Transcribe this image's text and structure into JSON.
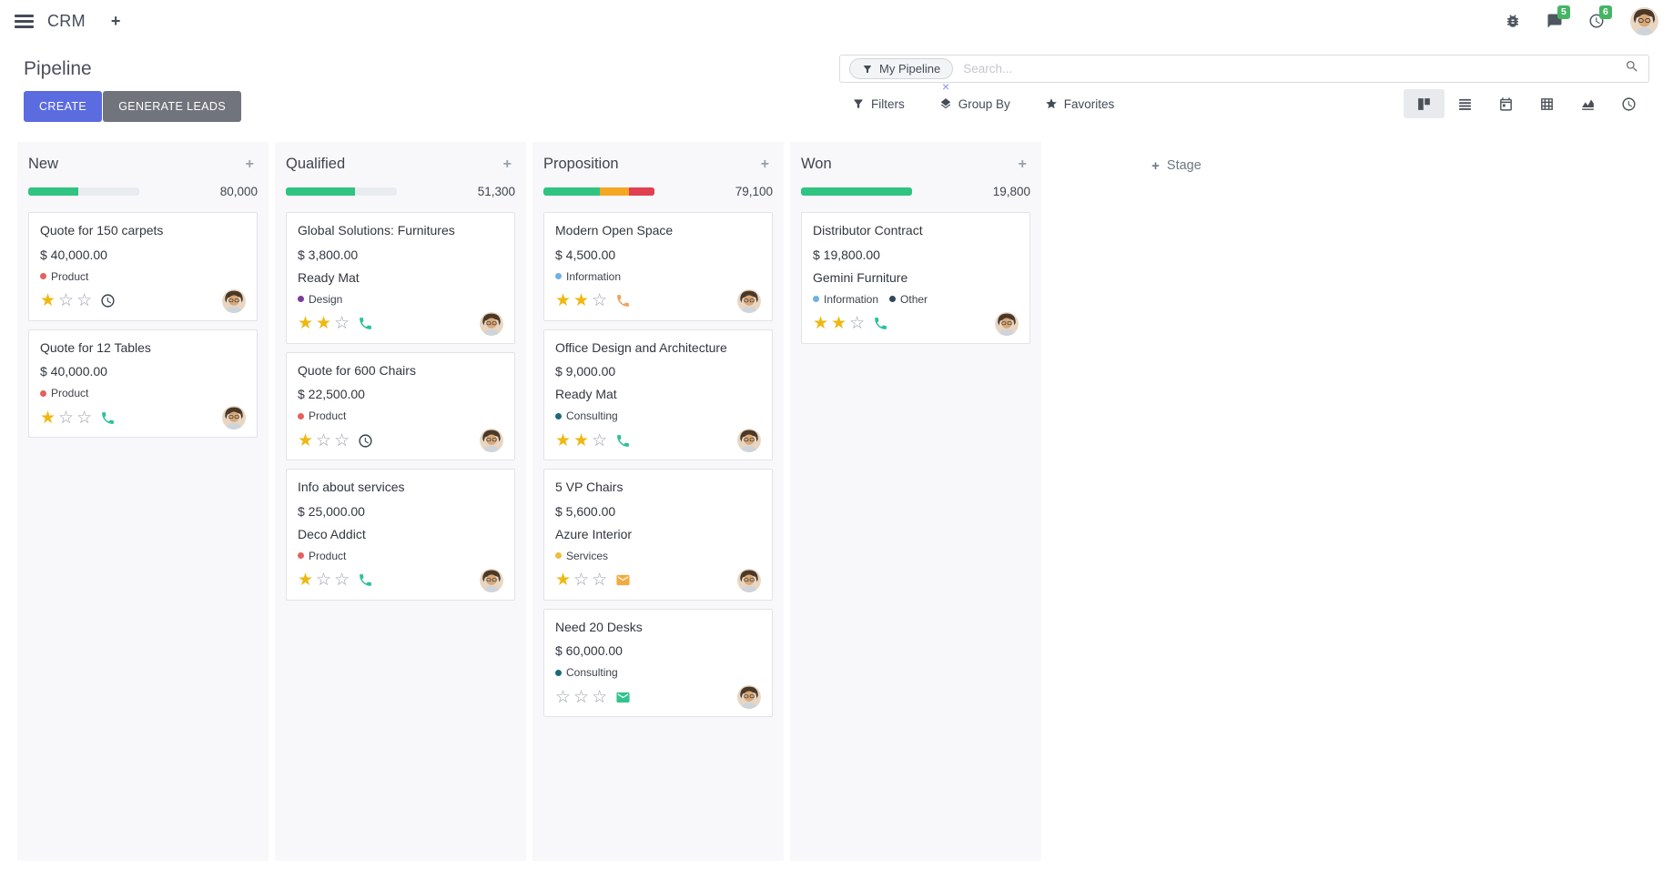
{
  "palette": {
    "accent": "#5b6be0",
    "secondary_button": "#71747c",
    "progress_track": "#e9ecef",
    "nav_badge_green": "#45b564",
    "star_gold": "#efb810"
  },
  "navbar": {
    "brand": "CRM",
    "plus": "+",
    "messages_badge": "5",
    "activities_badge": "6",
    "icons": [
      "hamburger-icon",
      "bug-icon",
      "chat-icon",
      "clock-icon",
      "avatar"
    ]
  },
  "control_panel": {
    "title": "Pipeline",
    "create_label": "CREATE",
    "generate_leads_label": "GENERATE LEADS",
    "search": {
      "facet_label": "My Pipeline",
      "facet_remove": "×",
      "placeholder": "Search..."
    },
    "filters_label": "Filters",
    "group_by_label": "Group By",
    "favorites_label": "Favorites",
    "view_switcher": [
      "kanban",
      "list",
      "calendar",
      "pivot",
      "graph",
      "activity"
    ],
    "active_view": "kanban"
  },
  "kanban": {
    "add_stage_plus": "+",
    "add_stage_label": "Stage",
    "columns": [
      {
        "name": "New",
        "amount": "80,000",
        "add": "+",
        "progress": [
          {
            "hex": "#30c381",
            "pct": 45
          }
        ],
        "cards": [
          {
            "title": "Quote for 150 carpets",
            "amount": "$ 40,000.00",
            "tags": [
              {
                "label": "Product",
                "hex": "#e4605e"
              }
            ],
            "stars": 1,
            "activity": {
              "icon": "clock",
              "hex": "#3b414c"
            }
          },
          {
            "title": "Quote for 12 Tables",
            "amount": "$ 40,000.00",
            "tags": [
              {
                "label": "Product",
                "hex": "#e4605e"
              }
            ],
            "stars": 1,
            "activity": {
              "icon": "phone",
              "hex": "#2bc199"
            }
          }
        ]
      },
      {
        "name": "Qualified",
        "amount": "51,300",
        "add": "+",
        "progress": [
          {
            "hex": "#30c381",
            "pct": 62
          }
        ],
        "cards": [
          {
            "title": "Global Solutions: Furnitures",
            "amount": "$ 3,800.00",
            "partner": "Ready Mat",
            "tags": [
              {
                "label": "Design",
                "hex": "#7d3c98"
              }
            ],
            "stars": 2,
            "activity": {
              "icon": "phone",
              "hex": "#2bc199"
            }
          },
          {
            "title": "Quote for 600 Chairs",
            "amount": "$ 22,500.00",
            "tags": [
              {
                "label": "Product",
                "hex": "#e4605e"
              }
            ],
            "stars": 1,
            "activity": {
              "icon": "clock",
              "hex": "#3b414c"
            }
          },
          {
            "title": "Info about services",
            "amount": "$ 25,000.00",
            "partner": "Deco Addict",
            "tags": [
              {
                "label": "Product",
                "hex": "#e4605e"
              }
            ],
            "stars": 1,
            "activity": {
              "icon": "phone",
              "hex": "#2bc199"
            }
          }
        ]
      },
      {
        "name": "Proposition",
        "amount": "79,100",
        "add": "+",
        "progress": [
          {
            "hex": "#30c381",
            "pct": 51
          },
          {
            "hex": "#f5a623",
            "pct": 26
          },
          {
            "hex": "#e04050",
            "pct": 23
          }
        ],
        "cards": [
          {
            "title": "Modern Open Space",
            "amount": "$ 4,500.00",
            "tags": [
              {
                "label": "Information",
                "hex": "#6fb1e4"
              }
            ],
            "stars": 2,
            "activity": {
              "icon": "phone",
              "hex": "#f0a25f"
            }
          },
          {
            "title": "Office Design and Architecture",
            "amount": "$ 9,000.00",
            "partner": "Ready Mat",
            "tags": [
              {
                "label": "Consulting",
                "hex": "#1d6a79"
              }
            ],
            "stars": 2,
            "activity": {
              "icon": "phone",
              "hex": "#2bc199"
            }
          },
          {
            "title": "5 VP Chairs",
            "amount": "$ 5,600.00",
            "partner": "Azure Interior",
            "tags": [
              {
                "label": "Services",
                "hex": "#efbc3e"
              }
            ],
            "stars": 1,
            "activity": {
              "icon": "envelope",
              "hex": "#f2ab3f"
            }
          },
          {
            "title": "Need 20 Desks",
            "amount": "$ 60,000.00",
            "tags": [
              {
                "label": "Consulting",
                "hex": "#1d6a79"
              }
            ],
            "stars": 0,
            "activity": {
              "icon": "envelope",
              "hex": "#33c48d"
            }
          }
        ]
      },
      {
        "name": "Won",
        "amount": "19,800",
        "add": "+",
        "progress": [
          {
            "hex": "#30c381",
            "pct": 100
          }
        ],
        "cards": [
          {
            "title": "Distributor Contract",
            "amount": "$ 19,800.00",
            "partner": "Gemini Furniture",
            "tags": [
              {
                "label": "Information",
                "hex": "#6fb1e4"
              },
              {
                "label": "Other",
                "hex": "#32465a"
              }
            ],
            "stars": 2,
            "activity": {
              "icon": "phone",
              "hex": "#2bc199"
            }
          }
        ]
      }
    ]
  }
}
